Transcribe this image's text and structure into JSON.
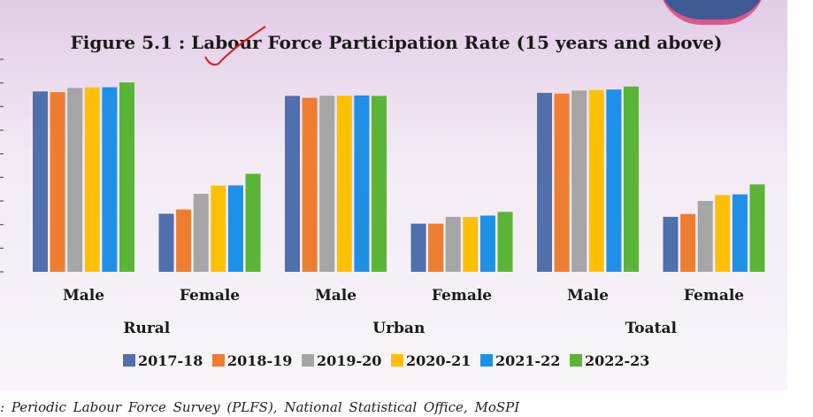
{
  "chart_data": {
    "type": "bar",
    "title": "Figure 5.1 : Labour Force Participation Rate (15 years and above)",
    "categories": [
      "Male",
      "Female",
      "Male",
      "Female",
      "Male",
      "Female"
    ],
    "groups": [
      "Rural",
      "Urban",
      "Toatal"
    ],
    "series": [
      {
        "name": "2017-18",
        "color": "#4f6fad",
        "values": [
          76.4,
          24.6,
          74.5,
          20.4,
          75.8,
          23.3
        ]
      },
      {
        "name": "2018-19",
        "color": "#ee7d31",
        "values": [
          76.1,
          26.4,
          73.7,
          20.4,
          75.5,
          24.5
        ]
      },
      {
        "name": "2019-20",
        "color": "#a5a5a5",
        "values": [
          77.9,
          33.0,
          74.6,
          23.3,
          76.8,
          30.0
        ]
      },
      {
        "name": "2020-21",
        "color": "#ffc000",
        "values": [
          78.1,
          36.5,
          74.6,
          23.2,
          77.0,
          32.5
        ]
      },
      {
        "name": "2021-22",
        "color": "#1e90e8",
        "values": [
          78.2,
          36.6,
          74.7,
          23.8,
          77.2,
          32.8
        ]
      },
      {
        "name": "2022-23",
        "color": "#5ab537",
        "values": [
          80.2,
          41.5,
          74.5,
          25.4,
          78.5,
          37.0
        ]
      }
    ],
    "ylim": [
      0,
      90
    ],
    "grid": false,
    "legend": "bottom"
  },
  "source_text": ": Periodic Labour Force Survey (PLFS), National Statistical Office, MoSPI"
}
